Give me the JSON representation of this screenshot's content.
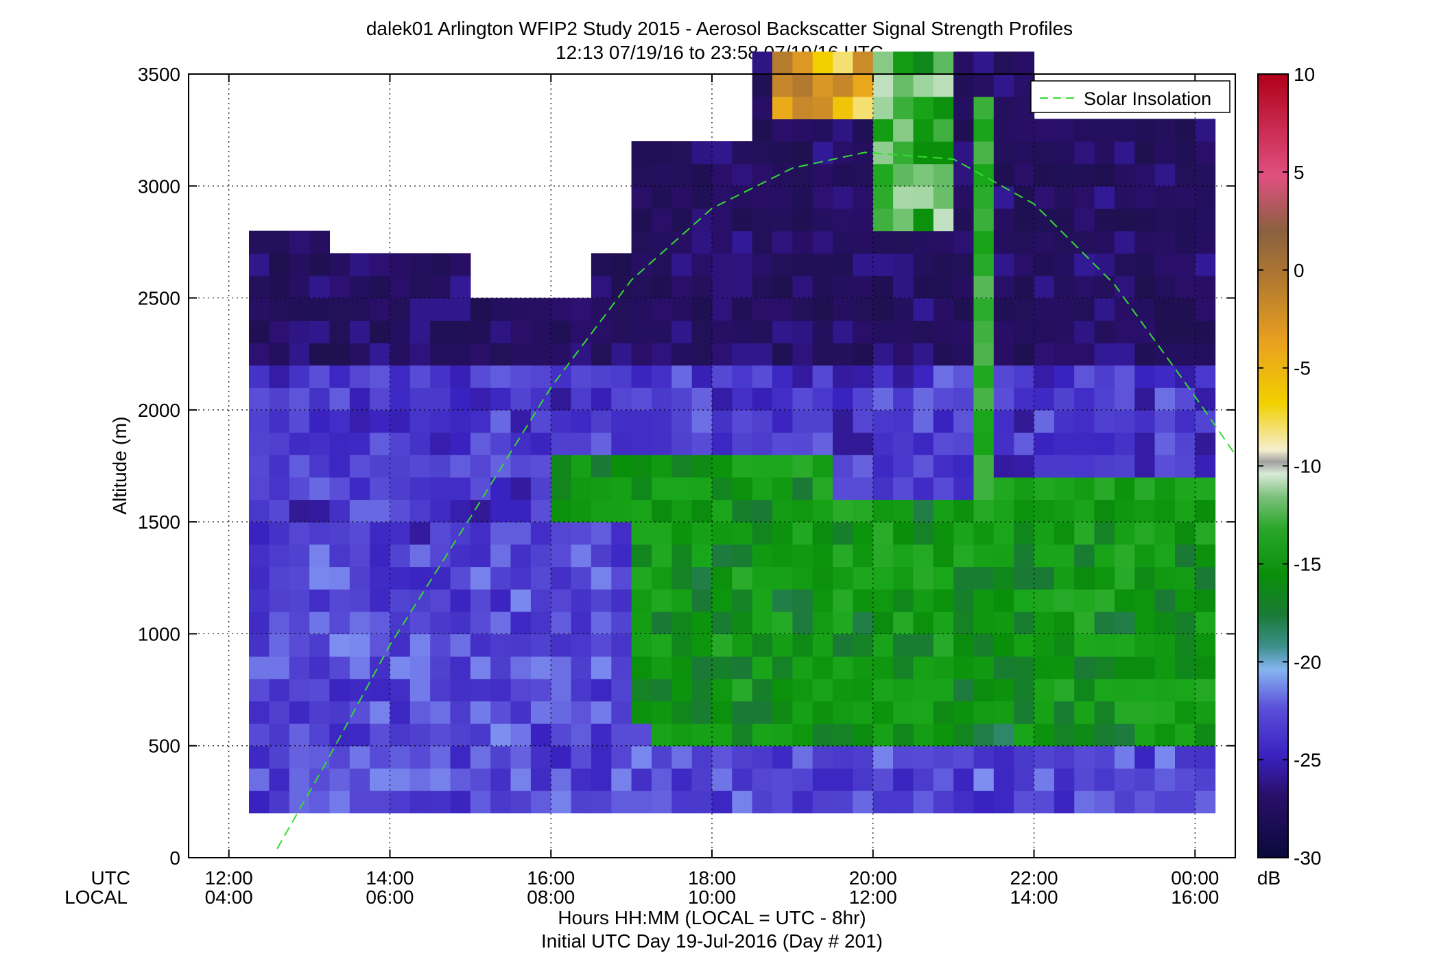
{
  "chart_data": {
    "type": "heatmap",
    "title": "dalek01 Arlington WFIP2 Study 2015 - Aerosol Backscatter Signal Strength Profiles",
    "subtitle": "12:13 07/19/16 to 23:58 07/19/16  UTC",
    "ylabel": "Altitude (m)",
    "xlabel": "Hours HH:MM  (LOCAL = UTC - 8hr)",
    "xlabel2": "Initial UTC Day 19-Jul-2016 (Day # 201)",
    "xaxis_row_labels": [
      "UTC",
      "LOCAL"
    ],
    "x_ticks_utc": [
      "12:00",
      "14:00",
      "16:00",
      "18:00",
      "20:00",
      "22:00",
      "00:00"
    ],
    "x_ticks_local": [
      "04:00",
      "06:00",
      "08:00",
      "10:00",
      "12:00",
      "14:00",
      "16:00"
    ],
    "x_tick_hours": [
      12,
      14,
      16,
      18,
      20,
      22,
      24
    ],
    "xlim_hours": [
      11.5,
      24.5
    ],
    "y_ticks": [
      0,
      500,
      1000,
      1500,
      2000,
      2500,
      3000,
      3500
    ],
    "ylim": [
      0,
      3500
    ],
    "grid": true,
    "colorbar": {
      "label": "dB",
      "range": [
        -30,
        10
      ],
      "ticks": [
        10,
        5,
        0,
        -5,
        -10,
        -15,
        -20,
        -25,
        -30
      ]
    },
    "legend": {
      "entries": [
        "Solar Insolation"
      ],
      "placement": "top-right"
    },
    "series": [
      {
        "name": "Solar Insolation",
        "style": "dashed",
        "color": "#33dd33",
        "points": [
          [
            12.6,
            40
          ],
          [
            13.2,
            420
          ],
          [
            14.0,
            950
          ],
          [
            15.0,
            1520
          ],
          [
            16.0,
            2100
          ],
          [
            17.0,
            2580
          ],
          [
            18.0,
            2900
          ],
          [
            19.0,
            3080
          ],
          [
            19.9,
            3150
          ],
          [
            21.0,
            3120
          ],
          [
            22.0,
            2920
          ],
          [
            23.0,
            2560
          ],
          [
            24.0,
            2060
          ],
          [
            24.5,
            1800
          ]
        ]
      }
    ],
    "heatmap": {
      "time_start_hours": 12.25,
      "time_step_hours": 0.25,
      "altitude_bottom_m": 200,
      "altitude_step_m": 100,
      "value_units": "dB",
      "cell_values_note": "rows from bottom (200 m) upward; null = no data",
      "rows": []
    },
    "colors": {
      "colormap": [
        "#0a0a3c",
        "#2a0f6a",
        "#3a22c0",
        "#5a4ed8",
        "#7d8ef0",
        "#86b4f0",
        "#3c8f8a",
        "#1a7a35",
        "#0a8f0a",
        "#1aa61a",
        "#5ab85a",
        "#a8d8a8",
        "#e8eee8",
        "#f4e7a0",
        "#f2d000",
        "#e8a020",
        "#b07830",
        "#8a6040",
        "#e05080",
        "#c01830",
        "#b0001a"
      ]
    }
  }
}
